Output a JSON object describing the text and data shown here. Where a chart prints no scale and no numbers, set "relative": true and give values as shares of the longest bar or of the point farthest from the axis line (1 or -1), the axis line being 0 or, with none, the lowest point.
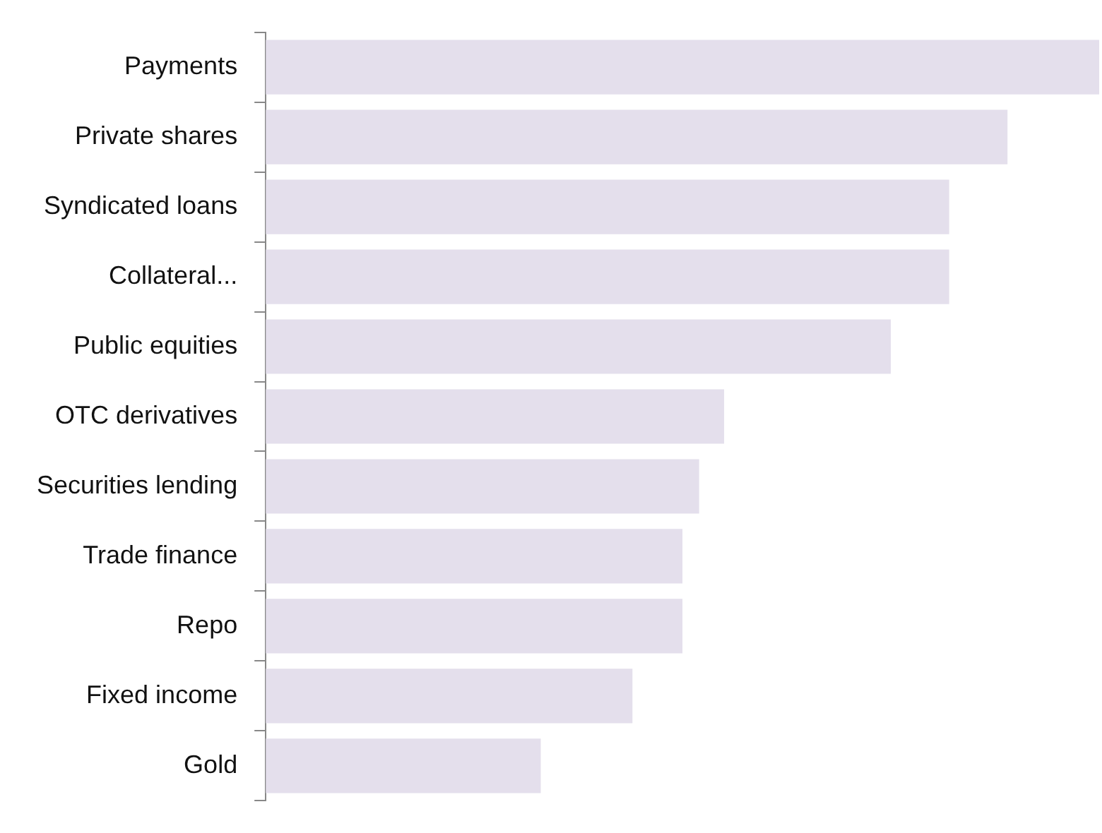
{
  "chart_data": {
    "type": "bar",
    "orientation": "horizontal",
    "relative": true,
    "categories": [
      "Payments",
      "Private shares",
      "Syndicated loans",
      "Collateral...",
      "Public equities",
      "OTC derivatives",
      "Securities lending",
      "Trade finance",
      "Repo",
      "Fixed income",
      "Gold"
    ],
    "values": [
      1,
      0.89,
      0.82,
      0.82,
      0.75,
      0.55,
      0.52,
      0.5,
      0.5,
      0.44,
      0.33
    ],
    "color": "#e4dfec"
  }
}
